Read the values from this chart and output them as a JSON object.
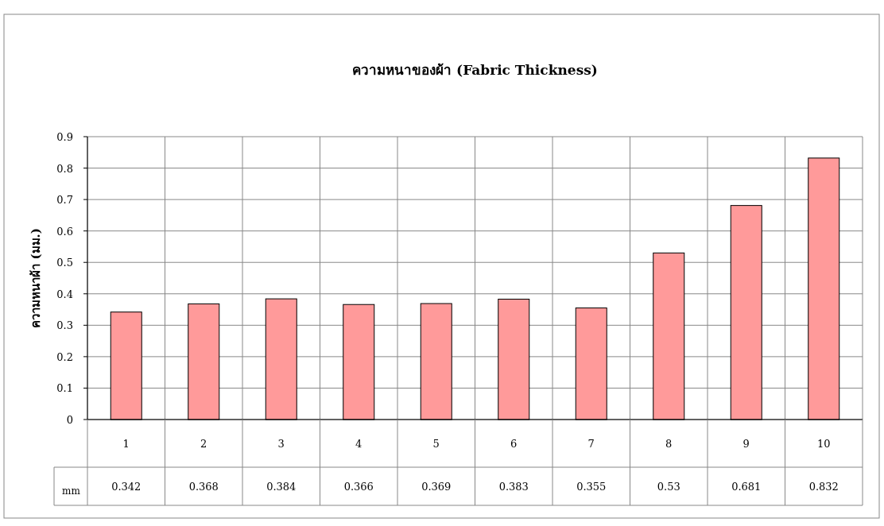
{
  "chart_data": {
    "type": "bar",
    "title": "ความหนาของผ้า (Fabric Thickness)",
    "ylabel": "ความหนาผ้า (มม.)",
    "categories": [
      "1",
      "2",
      "3",
      "4",
      "5",
      "6",
      "7",
      "8",
      "9",
      "10"
    ],
    "series": [
      {
        "name": "mm",
        "color": "#ff9a9a",
        "values": [
          0.342,
          0.368,
          0.384,
          0.366,
          0.369,
          0.383,
          0.355,
          0.53,
          0.681,
          0.832
        ]
      }
    ],
    "ylim": [
      0,
      0.9
    ],
    "yticks": [
      0,
      0.1,
      0.2,
      0.3,
      0.4,
      0.5,
      0.6,
      0.7,
      0.8,
      0.9
    ],
    "grid": true,
    "data_labels": true
  }
}
